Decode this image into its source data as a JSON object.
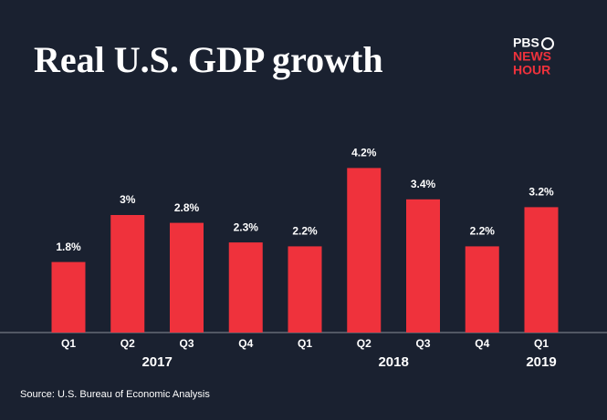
{
  "chart_data": {
    "type": "bar",
    "title": "Real U.S. GDP growth",
    "logo": [
      "PBS",
      "NEWS",
      "HOUR"
    ],
    "categories": [
      "Q1",
      "Q2",
      "Q3",
      "Q4",
      "Q1",
      "Q2",
      "Q3",
      "Q4",
      "Q1"
    ],
    "year_labels": [
      "2017",
      "2018",
      "2019"
    ],
    "values": [
      1.8,
      3,
      2.8,
      2.3,
      2.2,
      4.2,
      3.4,
      2.2,
      3.2
    ],
    "value_labels": [
      "1.8%",
      "3%",
      "2.8%",
      "2.3%",
      "2.2%",
      "4.2%",
      "3.4%",
      "2.2%",
      "3.2%"
    ],
    "color": "#ef323c",
    "source": "Source: U.S. Bureau of Economic Analysis"
  }
}
